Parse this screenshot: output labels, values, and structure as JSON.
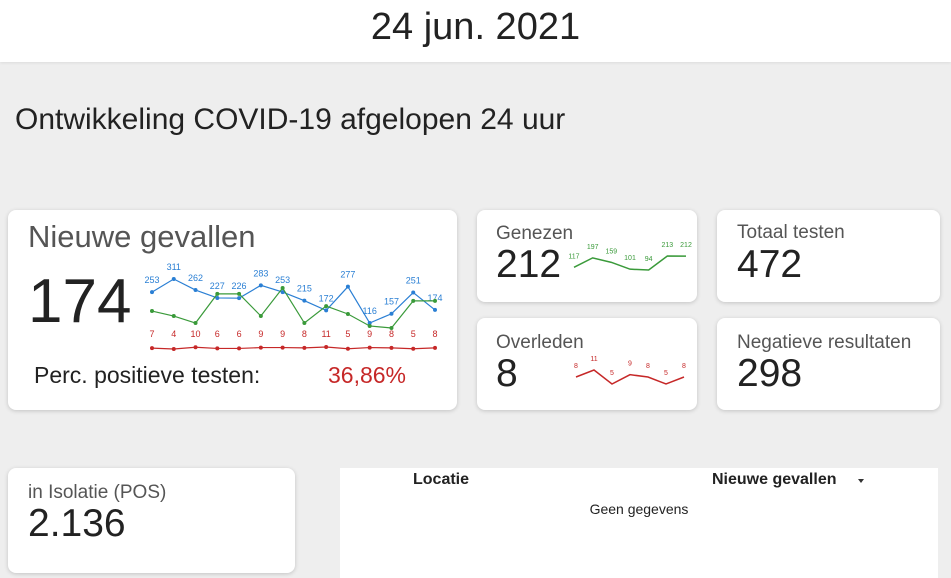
{
  "header": {
    "date": "24 jun. 2021"
  },
  "title": "Ontwikkeling COVID-19 afgelopen 24 uur",
  "cards": {
    "new_cases": {
      "label": "Nieuwe gevallen",
      "value": "174",
      "perc_label": "Perc. positieve testen:",
      "perc_value": "36,86%",
      "trend": {
        "cases": {
          "color": "#2a7fd4",
          "values": [
            253,
            311,
            262,
            227,
            226,
            283,
            253,
            215,
            172,
            277,
            116,
            157,
            251,
            174
          ]
        },
        "other": {
          "color": "#3a9a3a",
          "values": [
            169,
            147,
            116,
            245,
            245,
            147,
            271,
            116,
            191,
            156,
            103,
            94,
            214,
            214
          ]
        },
        "deaths": {
          "color": "#c62828",
          "values": [
            7,
            4,
            10,
            6,
            6,
            9,
            9,
            8,
            11,
            5,
            9,
            8,
            5,
            8
          ]
        }
      }
    },
    "recovered": {
      "label": "Genezen",
      "value": "212",
      "trend": {
        "color": "#3a9a3a",
        "values": [
          117,
          197,
          159,
          101,
          94,
          213,
          212
        ]
      }
    },
    "deceased": {
      "label": "Overleden",
      "value": "8",
      "trend": {
        "color": "#c62828",
        "values": [
          8,
          11,
          5,
          9,
          8,
          5,
          8
        ]
      }
    },
    "total_tests": {
      "label": "Totaal testen",
      "value": "472"
    },
    "negative": {
      "label": "Negatieve resultaten",
      "value": "298"
    },
    "isolation": {
      "label": "in Isolatie (POS)",
      "value": "2.136"
    }
  },
  "table": {
    "headers": [
      "Locatie",
      "Nieuwe gevallen"
    ],
    "empty": "Geen gegevens"
  }
}
